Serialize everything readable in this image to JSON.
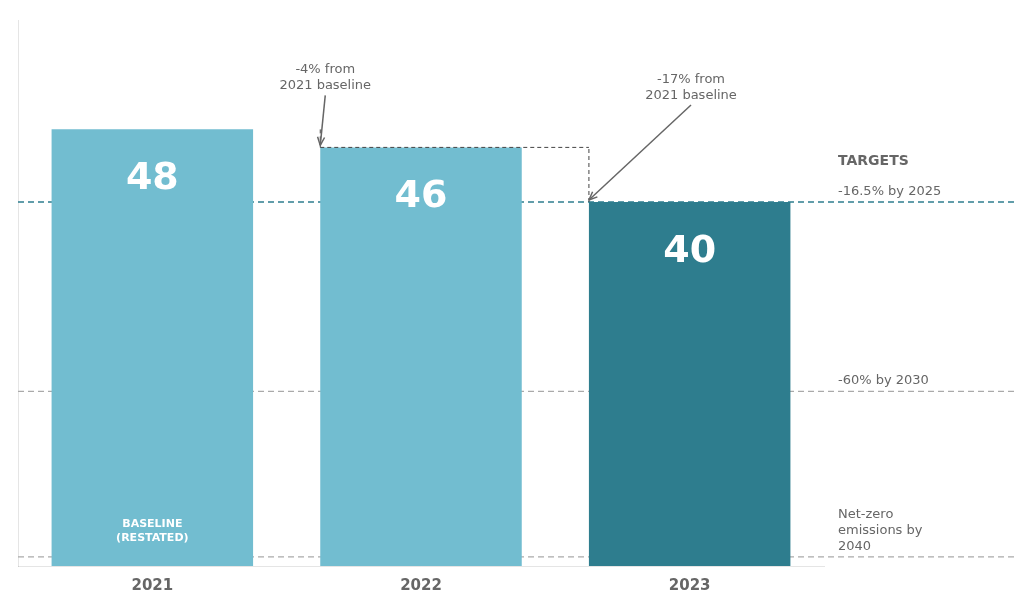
{
  "chart_data": {
    "type": "bar",
    "categories": [
      "2021",
      "2022",
      "2023"
    ],
    "values": [
      48,
      46,
      40
    ],
    "colors": [
      "#72bdd0",
      "#72bdd0",
      "#2e7d8e"
    ],
    "data_labels": true,
    "ylim": [
      0,
      60
    ],
    "grid": false,
    "tick_labels": "x",
    "bar_notes": [
      {
        "text": "BASELINE\n(RESTATED)",
        "category": "2021"
      }
    ],
    "annotations": [
      {
        "text": "-4% from\n2021 baseline",
        "category": "2022"
      },
      {
        "text": "-17% from\n2021 baseline",
        "category": "2023"
      }
    ],
    "targets_title": "TARGETS",
    "targets": [
      {
        "label": "-16.5% by 2025",
        "value": 40
      },
      {
        "label": "-60% by 2030",
        "value": 19.2
      },
      {
        "label": "Net-zero\nemissions by\n2040",
        "value": 1.0
      }
    ]
  }
}
